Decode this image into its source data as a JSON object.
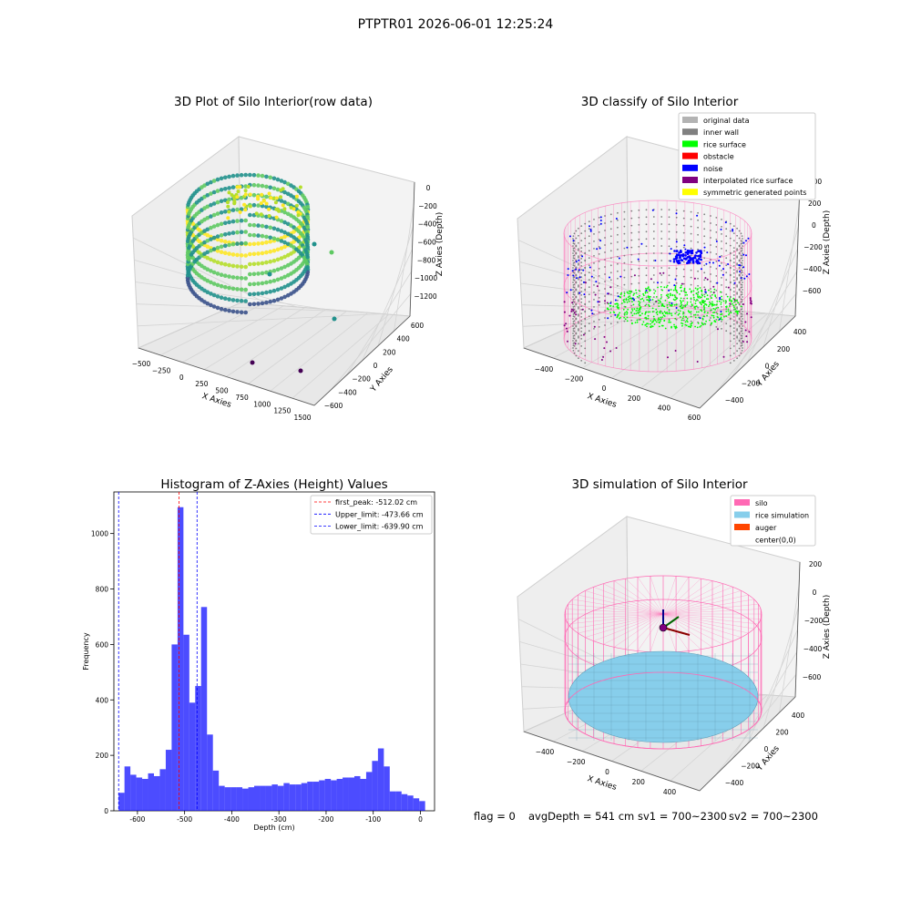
{
  "suptitle": "PTPTR01 2026-06-01 12:25:24",
  "footer": {
    "flag": "flag = 0",
    "avg_depth": "avgDepth = 541 cm",
    "sv1": "sv1 = 700~2300",
    "sv2": "sv2 = 700~2300"
  },
  "chart_data": [
    {
      "type": "scatter",
      "title": "3D Plot of Silo Interior(row data)",
      "xlabel": "X Axies",
      "ylabel": "Y Axies",
      "zlabel": "Z Axies (Depth)",
      "x_ticks": [
        "−500",
        "−250",
        "0",
        "250",
        "500",
        "750",
        "1000",
        "1250",
        "1500"
      ],
      "y_ticks": [
        "−600",
        "−400",
        "−200",
        "0",
        "200",
        "400",
        "600"
      ],
      "z_ticks": [
        "0",
        "−200",
        "−400",
        "−600",
        "−800",
        "−1000",
        "−1200"
      ],
      "xlim": [
        -500,
        1500
      ],
      "ylim": [
        -600,
        600
      ],
      "zlim": [
        -1300,
        0
      ],
      "colormap": "viridis",
      "outlier_points": [
        {
          "x": 1050,
          "y": -550,
          "z": -1300
        },
        {
          "x": 900,
          "y": -400,
          "z": -1250
        },
        {
          "x": 1400,
          "y": 350,
          "z": -900
        },
        {
          "x": 1300,
          "y": 300,
          "z": -700
        },
        {
          "x": 1200,
          "y": 200,
          "z": -650
        }
      ]
    },
    {
      "type": "scatter",
      "title": "3D classify of Silo Interior",
      "xlabel": "X Axies",
      "ylabel": "Y Axies",
      "zlabel": "Z Axies (Depth)",
      "x_ticks": [
        "−400",
        "−200",
        "0",
        "200",
        "400",
        "600"
      ],
      "y_ticks": [
        "−400",
        "−200",
        "0",
        "200",
        "400"
      ],
      "z_ticks": [
        "400",
        "200",
        "0",
        "−200",
        "−400",
        "−600"
      ],
      "legend_position": "top-right",
      "legend": [
        {
          "label": "original data",
          "color": "#b3b3b3"
        },
        {
          "label": "inner wall",
          "color": "#808080"
        },
        {
          "label": "rice surface",
          "color": "#00ff00"
        },
        {
          "label": "obstacle",
          "color": "#ff0000"
        },
        {
          "label": "noise",
          "color": "#0000ff"
        },
        {
          "label": "interpolated rice surface",
          "color": "#800080"
        },
        {
          "label": "symmetric generated points",
          "color": "#ffff00"
        }
      ]
    },
    {
      "type": "bar",
      "title": "Histogram of Z-Axies (Height) Values",
      "xlabel": "Depth (cm)",
      "ylabel": "Frequency",
      "xlim": [
        -650,
        30
      ],
      "ylim": [
        0,
        1150
      ],
      "x_ticks": [
        -600,
        -500,
        -400,
        -300,
        -200,
        -100,
        0
      ],
      "y_ticks": [
        0,
        200,
        400,
        600,
        800,
        1000
      ],
      "bar_color": "#0000ff",
      "bin_width": 12.5,
      "bins_start": [
        -640,
        -627.5,
        -615,
        -602.5,
        -590,
        -577.5,
        -565,
        -552.5,
        -540,
        -527.5,
        -515,
        -502.5,
        -490,
        -477.5,
        -465,
        -452.5,
        -440,
        -427.5,
        -415,
        -402.5,
        -390,
        -377.5,
        -365,
        -352.5,
        -340,
        -327.5,
        -315,
        -302.5,
        -290,
        -277.5,
        -265,
        -252.5,
        -240,
        -227.5,
        -215,
        -202.5,
        -190,
        -177.5,
        -165,
        -152.5,
        -140,
        -127.5,
        -115,
        -102.5,
        -90,
        -77.5,
        -65,
        -52.5,
        -40,
        -27.5,
        -15,
        -2.5
      ],
      "frequencies": [
        65,
        160,
        130,
        120,
        115,
        135,
        125,
        150,
        220,
        600,
        1095,
        635,
        390,
        450,
        735,
        275,
        145,
        90,
        85,
        85,
        85,
        80,
        85,
        90,
        90,
        90,
        95,
        90,
        100,
        95,
        95,
        100,
        105,
        105,
        110,
        115,
        110,
        115,
        120,
        120,
        125,
        115,
        140,
        180,
        225,
        160,
        70,
        70,
        60,
        55,
        45,
        35
      ],
      "vlines": [
        {
          "label": "first_peak: -512.02 cm",
          "x": -512.02,
          "color": "#ff0000"
        },
        {
          "label": "Upper_limit: -473.66 cm",
          "x": -473.66,
          "color": "#0000ff"
        },
        {
          "label": "Lower_limit: -639.90 cm",
          "x": -639.9,
          "color": "#0000ff"
        }
      ],
      "legend_position": "top-right"
    },
    {
      "type": "scatter",
      "title": "3D simulation of Silo Interior",
      "xlabel": "X Axies",
      "ylabel": "Y Axies",
      "zlabel": "Z Axies (Depth)",
      "x_ticks": [
        "−400",
        "−200",
        "0",
        "200",
        "400"
      ],
      "y_ticks": [
        "−400",
        "−200",
        "0",
        "200",
        "400"
      ],
      "z_ticks": [
        "200",
        "0",
        "−200",
        "−400",
        "−600"
      ],
      "legend_position": "top-right",
      "legend": [
        {
          "label": "silo",
          "color": "#ff69b4"
        },
        {
          "label": "rice simulation",
          "color": "#87ceeb"
        },
        {
          "label": "auger",
          "color": "#ff4500"
        },
        {
          "label": "center(0,0)",
          "color": "#ffffff"
        }
      ]
    }
  ]
}
